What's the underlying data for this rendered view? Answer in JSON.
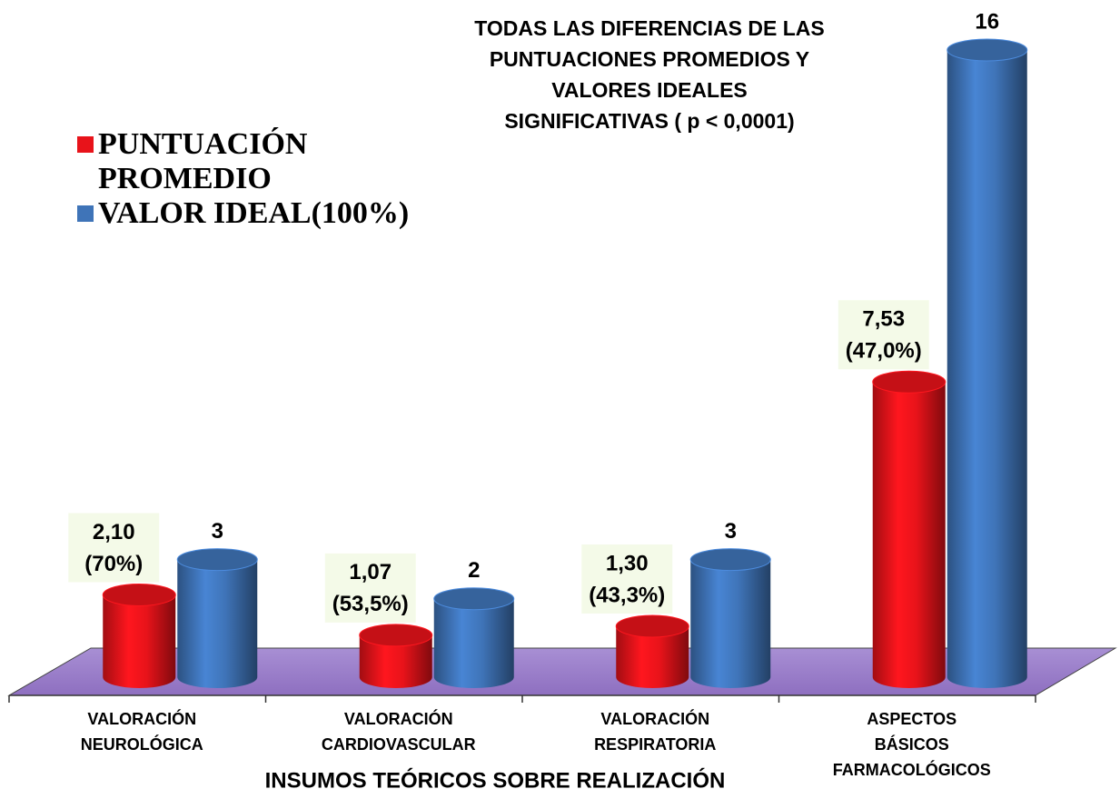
{
  "chart_data": {
    "type": "bar3d",
    "title": [
      "TODAS LAS DIFERENCIAS DE LAS",
      "PUNTUACIONES PROMEDIOS  Y",
      "VALORES  IDEALES",
      "SIGNIFICATIVAS ( p < 0,0001)"
    ],
    "x_label": "INSUMOS TEÓRICOS SOBRE REALIZACIÓN",
    "categories": [
      [
        "VALORACIÓN",
        "NEUROLÓGICA"
      ],
      [
        "VALORACIÓN",
        "CARDIOVASCULAR"
      ],
      [
        "VALORACIÓN",
        "RESPIRATORIA"
      ],
      [
        "ASPECTOS",
        "BÁSICOS",
        "FARMACOLÓGICOS"
      ]
    ],
    "series": [
      {
        "name": "PUNTUACIÓN PROMEDIO",
        "color": "#e8131a",
        "values": [
          2.1,
          1.07,
          1.3,
          7.53
        ],
        "value_labels": [
          "2,10",
          "1,07",
          "1,30",
          "7,53"
        ],
        "percent_labels": [
          "(70%)",
          "(53,5%)",
          "(43,3%)",
          "(47,0%)"
        ]
      },
      {
        "name": "VALOR IDEAL(100%)",
        "color": "#3f74b8",
        "values": [
          3,
          2,
          3,
          16
        ]
      }
    ],
    "legend": "upper left"
  }
}
